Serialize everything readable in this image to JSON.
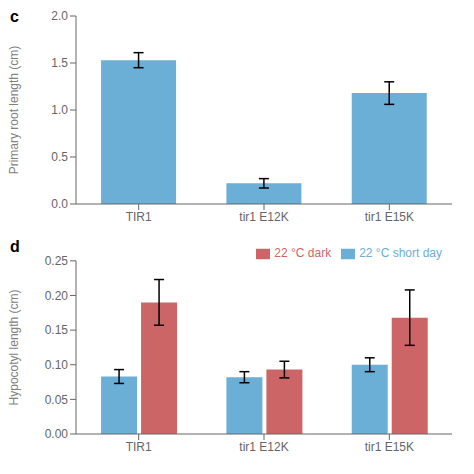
{
  "chart_data": [
    {
      "type": "bar",
      "title": "c",
      "categories": [
        "TIR1",
        "tir1 E12K",
        "tir1 E15K"
      ],
      "values": [
        1.53,
        0.22,
        1.18
      ],
      "errors": [
        0.08,
        0.05,
        0.12
      ],
      "color": "#6baed6",
      "ylabel": "Primary root length (cm)",
      "ylim": [
        0,
        2.0
      ],
      "yticks": [
        {
          "value": 0.0,
          "label": "0.0"
        },
        0.5,
        {
          "value": 1.0,
          "label": "1.0"
        },
        1.5,
        {
          "value": 2.0,
          "label": "2.0"
        }
      ],
      "grid": false
    },
    {
      "type": "bar",
      "title": "d",
      "categories": [
        "TIR1",
        "tir1 E12K",
        "tir1 E15K"
      ],
      "series": [
        {
          "name": "22 °C short day",
          "color": "#6baed6",
          "values": [
            0.083,
            0.082,
            0.1
          ],
          "errors": [
            0.01,
            0.008,
            0.01
          ]
        },
        {
          "name": "22 °C dark",
          "color": "#cc6666",
          "values": [
            0.19,
            0.093,
            0.168
          ],
          "errors": [
            0.033,
            0.012,
            0.04
          ]
        }
      ],
      "ylabel": "Hypocotyl length (cm)",
      "ylim": [
        0,
        0.25
      ],
      "yticks": [
        {
          "value": 0.0,
          "label": "0.00"
        },
        0.05,
        {
          "value": 0.1,
          "label": "0.10"
        },
        0.15,
        {
          "value": 0.2,
          "label": "0.20"
        },
        0.25
      ],
      "legend": "upper right",
      "grid": false
    }
  ]
}
